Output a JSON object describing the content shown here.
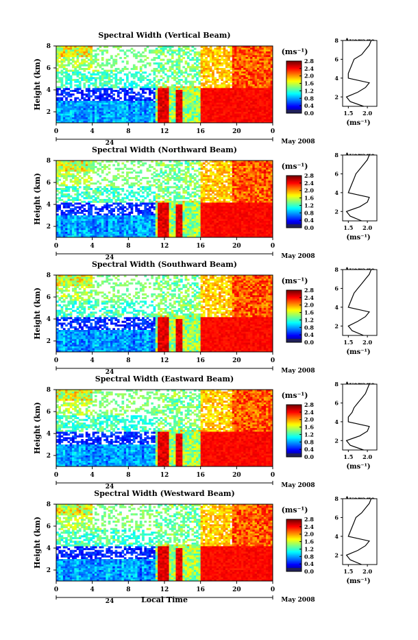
{
  "chart_data": [
    {
      "type": "heatmap",
      "title": "Spectral Width (Vertical Beam)",
      "ylabel": "Height (km)",
      "colorbar_unit": "(ms⁻¹)",
      "colorbar_ticks": [
        "0.0",
        "0.4",
        "0.8",
        "1.2",
        "1.6",
        "2.0",
        "2.4",
        "2.8"
      ],
      "x_ticks": [
        "0",
        "4",
        "8",
        "12",
        "16",
        "20",
        "0"
      ],
      "date_label": "24",
      "month_label": "May 2008",
      "y_ticks": [
        "2",
        "4",
        "6",
        "8"
      ],
      "profile": {
        "title": "Average",
        "x_ticks": [
          "1.5",
          "2.0"
        ],
        "xlabel": "(ms⁻¹)",
        "y_ticks": [
          "2",
          "4",
          "6",
          "8"
        ],
        "xlim": [
          1.35,
          2.25
        ],
        "ylim": [
          1,
          8
        ],
        "heights": [
          1.0,
          1.5,
          2.0,
          2.5,
          3.0,
          3.5,
          4.0,
          4.5,
          5.0,
          5.5,
          6.0,
          6.5,
          7.0,
          7.5,
          8.0
        ],
        "values": [
          1.9,
          1.55,
          1.45,
          1.75,
          1.95,
          2.05,
          1.5,
          1.5,
          1.55,
          1.6,
          1.65,
          1.85,
          1.95,
          2.05,
          2.1
        ]
      }
    },
    {
      "type": "heatmap",
      "title": "Spectral Width (Northward Beam)",
      "ylabel": "Height (km)",
      "colorbar_unit": "(ms⁻¹)",
      "colorbar_ticks": [
        "0.0",
        "0.4",
        "0.8",
        "1.2",
        "1.6",
        "2.0",
        "2.4",
        "2.8"
      ],
      "x_ticks": [
        "0",
        "4",
        "8",
        "12",
        "16",
        "20",
        "0"
      ],
      "date_label": "24",
      "month_label": "May 2008",
      "y_ticks": [
        "2",
        "4",
        "6",
        "8"
      ],
      "profile": {
        "title": "Average",
        "x_ticks": [
          "1.5",
          "2.0"
        ],
        "xlabel": "(ms⁻¹)",
        "y_ticks": [
          "2",
          "4",
          "6",
          "8"
        ],
        "xlim": [
          1.35,
          2.25
        ],
        "ylim": [
          1,
          8
        ],
        "heights": [
          1.0,
          1.5,
          2.0,
          2.5,
          3.0,
          3.5,
          4.0,
          4.5,
          5.0,
          5.5,
          6.0,
          6.5,
          7.0,
          7.5,
          8.0
        ],
        "values": [
          1.85,
          1.55,
          1.45,
          1.8,
          2.0,
          2.05,
          1.5,
          1.55,
          1.6,
          1.65,
          1.7,
          1.8,
          1.9,
          2.0,
          2.05
        ]
      }
    },
    {
      "type": "heatmap",
      "title": "Spectral Width (Southward Beam)",
      "ylabel": "Height (km)",
      "colorbar_unit": "(ms⁻¹)",
      "colorbar_ticks": [
        "0.0",
        "0.4",
        "0.8",
        "1.2",
        "1.6",
        "2.0",
        "2.4",
        "2.8"
      ],
      "x_ticks": [
        "0",
        "4",
        "8",
        "12",
        "16",
        "20",
        "0"
      ],
      "date_label": "24",
      "month_label": "May 2008",
      "y_ticks": [
        "2",
        "4",
        "6",
        "8"
      ],
      "profile": {
        "title": "Average",
        "x_ticks": [
          "1.5",
          "2.0"
        ],
        "xlabel": "(ms⁻¹)",
        "y_ticks": [
          "2",
          "4",
          "6",
          "8"
        ],
        "xlim": [
          1.35,
          2.25
        ],
        "ylim": [
          1,
          8
        ],
        "heights": [
          1.0,
          1.5,
          2.0,
          2.5,
          3.0,
          3.5,
          4.0,
          4.5,
          5.0,
          5.5,
          6.0,
          6.5,
          7.0,
          7.5,
          8.0
        ],
        "values": [
          1.9,
          1.6,
          1.5,
          1.75,
          1.95,
          2.05,
          1.5,
          1.55,
          1.6,
          1.65,
          1.75,
          1.85,
          1.95,
          2.05,
          2.1
        ]
      }
    },
    {
      "type": "heatmap",
      "title": "Spectral Width (Eastward Beam)",
      "ylabel": "Height (km)",
      "colorbar_unit": "(ms⁻¹)",
      "colorbar_ticks": [
        "0.0",
        "0.4",
        "0.8",
        "1.2",
        "1.6",
        "2.0",
        "2.4",
        "2.8"
      ],
      "x_ticks": [
        "0",
        "4",
        "8",
        "12",
        "16",
        "20",
        "0"
      ],
      "date_label": "24",
      "month_label": "May 2008",
      "y_ticks": [
        "2",
        "4",
        "6",
        "8"
      ],
      "profile": {
        "title": "Average",
        "x_ticks": [
          "1.5",
          "2.0"
        ],
        "xlabel": "(ms⁻¹)",
        "y_ticks": [
          "2",
          "4",
          "6",
          "8"
        ],
        "xlim": [
          1.35,
          2.25
        ],
        "ylim": [
          1,
          8
        ],
        "heights": [
          1.0,
          1.5,
          2.0,
          2.5,
          3.0,
          3.5,
          4.0,
          4.5,
          5.0,
          5.5,
          6.0,
          6.5,
          7.0,
          7.5,
          8.0
        ],
        "values": [
          1.9,
          1.55,
          1.45,
          1.8,
          2.0,
          2.05,
          1.5,
          1.5,
          1.6,
          1.65,
          1.75,
          1.85,
          1.95,
          2.0,
          2.05
        ]
      }
    },
    {
      "type": "heatmap",
      "title": "Spectral Width (Westward Beam)",
      "ylabel": "Height (km)",
      "colorbar_unit": "(ms⁻¹)",
      "colorbar_ticks": [
        "0.0",
        "0.4",
        "0.8",
        "1.2",
        "1.6",
        "2.0",
        "2.4",
        "2.8"
      ],
      "x_ticks": [
        "0",
        "4",
        "8",
        "12",
        "16",
        "20",
        "0"
      ],
      "date_label": "24",
      "month_label": "May 2008",
      "y_ticks": [
        "2",
        "4",
        "6",
        "8"
      ],
      "profile": {
        "title": "Average",
        "x_ticks": [
          "1.5",
          "2.0"
        ],
        "xlabel": "(ms⁻¹)",
        "y_ticks": [
          "2",
          "4",
          "6",
          "8"
        ],
        "xlim": [
          1.35,
          2.25
        ],
        "ylim": [
          1,
          8
        ],
        "heights": [
          1.0,
          1.5,
          2.0,
          2.5,
          3.0,
          3.5,
          4.0,
          4.5,
          5.0,
          5.5,
          6.0,
          6.5,
          7.0,
          7.5,
          8.0
        ],
        "values": [
          1.85,
          1.55,
          1.45,
          1.75,
          1.95,
          2.05,
          1.5,
          1.55,
          1.6,
          1.65,
          1.7,
          1.85,
          1.95,
          2.05,
          2.1
        ]
      }
    }
  ],
  "footer": {
    "xlabel": "Local Time"
  }
}
